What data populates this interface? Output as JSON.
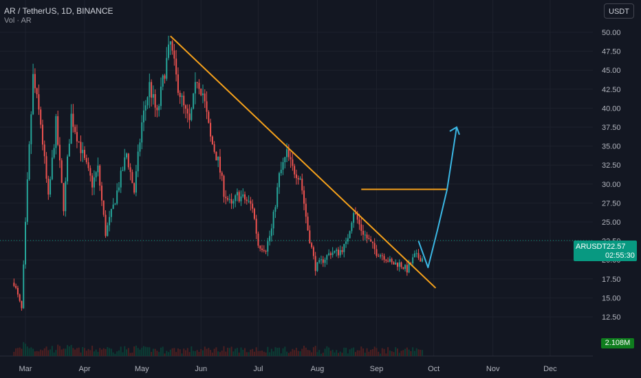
{
  "header": {
    "title": "AR / TetherUS, 1D, BINANCE",
    "indicator": "Vol · AR",
    "currency": "USDT"
  },
  "price_label": {
    "symbol": "ARUSDT",
    "price": "22.57",
    "countdown": "02:55:30"
  },
  "volume_label": "2.108M",
  "colors": {
    "bg": "#131722",
    "up": "#26a69a",
    "down": "#ef5350",
    "trend": "#f7a21b",
    "arrow": "#3bb8e5",
    "grid": "#1e222d"
  },
  "chart_data": {
    "type": "candlestick",
    "y_ticks": [
      "50.00",
      "47.50",
      "45.00",
      "42.50",
      "40.00",
      "37.50",
      "35.00",
      "32.50",
      "30.00",
      "27.50",
      "25.00",
      "22.50",
      "20.00",
      "17.50",
      "15.00",
      "12.50"
    ],
    "ylim": [
      10.2,
      51.8
    ],
    "x_ticks": [
      "Mar",
      "Apr",
      "May",
      "Jun",
      "Jul",
      "Aug",
      "Sep",
      "Oct",
      "Nov",
      "Dec"
    ],
    "last_price": 22.57,
    "price_path": [
      [
        "Feb 23",
        17.0
      ],
      [
        "Feb 27",
        13.5
      ],
      [
        "Mar 2",
        30.0
      ],
      [
        "Mar 5",
        44.0
      ],
      [
        "Mar 9",
        38.0
      ],
      [
        "Mar 13",
        28.0
      ],
      [
        "Mar 17",
        38.0
      ],
      [
        "Mar 21",
        27.0
      ],
      [
        "Mar 25",
        39.0
      ],
      [
        "Apr 1",
        33.0
      ],
      [
        "Apr 5",
        30.0
      ],
      [
        "Apr 8",
        32.0
      ],
      [
        "Apr 12",
        23.5
      ],
      [
        "Apr 16",
        27.0
      ],
      [
        "Apr 20",
        31.0
      ],
      [
        "Apr 23",
        34.0
      ],
      [
        "Apr 27",
        29.0
      ],
      [
        "May 1",
        38.0
      ],
      [
        "May 5",
        43.0
      ],
      [
        "May 9",
        39.0
      ],
      [
        "May 13",
        45.0
      ],
      [
        "May 16",
        48.5
      ],
      [
        "May 19",
        44.0
      ],
      [
        "May 23",
        40.0
      ],
      [
        "May 26",
        38.0
      ],
      [
        "May 30",
        44.0
      ],
      [
        "Jun 2",
        42.0
      ],
      [
        "Jun 6",
        36.0
      ],
      [
        "Jun 10",
        33.0
      ],
      [
        "Jun 13",
        29.0
      ],
      [
        "Jun 17",
        27.0
      ],
      [
        "Jun 20",
        28.5
      ],
      [
        "Jun 24",
        28.0
      ],
      [
        "Jun 28",
        27.0
      ],
      [
        "Jul 1",
        22.0
      ],
      [
        "Jul 5",
        21.5
      ],
      [
        "Jul 8",
        24.0
      ],
      [
        "Jul 12",
        31.0
      ],
      [
        "Jul 16",
        34.0
      ],
      [
        "Jul 19",
        32.0
      ],
      [
        "Jul 23",
        31.0
      ],
      [
        "Jul 27",
        24.0
      ],
      [
        "Jul 31",
        19.0
      ],
      [
        "Aug 4",
        20.0
      ],
      [
        "Aug 8",
        21.0
      ],
      [
        "Aug 12",
        21.0
      ],
      [
        "Aug 16",
        22.0
      ],
      [
        "Aug 20",
        26.5
      ],
      [
        "Aug 24",
        24.0
      ],
      [
        "Aug 28",
        22.5
      ],
      [
        "Sep 1",
        21.0
      ],
      [
        "Sep 5",
        20.5
      ],
      [
        "Sep 9",
        19.5
      ],
      [
        "Sep 13",
        19.5
      ],
      [
        "Sep 17",
        18.7
      ],
      [
        "Sep 21",
        20.5
      ],
      [
        "Sep 25",
        20.2
      ]
    ],
    "annotations": {
      "trendline": {
        "from": [
          "May 16",
          49.5
        ],
        "to": [
          "Oct 2",
          16.3
        ]
      },
      "resistance": {
        "from": [
          "Aug 24",
          29.3
        ],
        "to": [
          "Oct 8",
          29.3
        ]
      },
      "projection": [
        [
          "Sep 23",
          22.5
        ],
        [
          "Sep 28",
          19.0
        ],
        [
          "Oct 3",
          24.0
        ],
        [
          "Oct 8",
          29.3
        ],
        [
          "Oct 13",
          37.5
        ]
      ]
    },
    "volume": {
      "last": "2.108M"
    }
  }
}
